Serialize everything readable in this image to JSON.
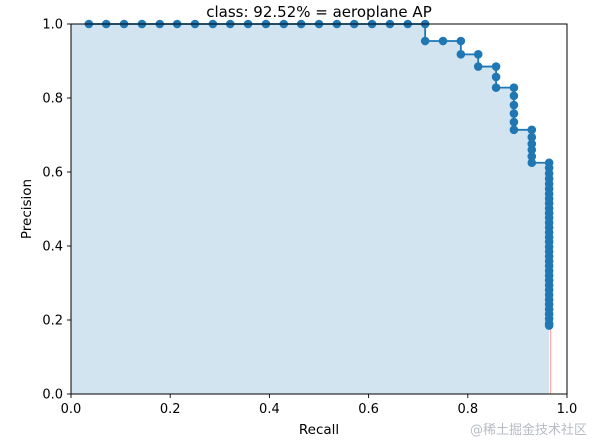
{
  "chart_data": {
    "type": "line",
    "title": "class: 92.52% = aeroplane AP",
    "xlabel": "Recall",
    "ylabel": "Precision",
    "xlim": [
      0.0,
      1.0
    ],
    "ylim": [
      0.0,
      1.0
    ],
    "xticks": [
      "0.0",
      "0.2",
      "0.4",
      "0.6",
      "0.8",
      "1.0"
    ],
    "yticks": [
      "0.0",
      "0.2",
      "0.4",
      "0.6",
      "0.8",
      "1.0"
    ],
    "grid": false,
    "legend": "none",
    "colors": {
      "line": "#1f77b4",
      "fill": "#1f77b4",
      "fill_alpha": 0.2,
      "edge": "#ff9a9a"
    },
    "series": [
      {
        "points": [
          [
            0.036,
            1.0
          ],
          [
            0.071,
            1.0
          ],
          [
            0.107,
            1.0
          ],
          [
            0.143,
            1.0
          ],
          [
            0.179,
            1.0
          ],
          [
            0.214,
            1.0
          ],
          [
            0.25,
            1.0
          ],
          [
            0.286,
            1.0
          ],
          [
            0.321,
            1.0
          ],
          [
            0.357,
            1.0
          ],
          [
            0.393,
            1.0
          ],
          [
            0.429,
            1.0
          ],
          [
            0.464,
            1.0
          ],
          [
            0.5,
            1.0
          ],
          [
            0.536,
            1.0
          ],
          [
            0.571,
            1.0
          ],
          [
            0.607,
            1.0
          ],
          [
            0.643,
            1.0
          ],
          [
            0.679,
            1.0
          ],
          [
            0.714,
            1.0
          ],
          [
            0.714,
            0.954
          ],
          [
            0.75,
            0.954
          ],
          [
            0.786,
            0.954
          ],
          [
            0.786,
            0.918
          ],
          [
            0.821,
            0.918
          ],
          [
            0.821,
            0.885
          ],
          [
            0.857,
            0.885
          ],
          [
            0.857,
            0.857
          ],
          [
            0.857,
            0.828
          ],
          [
            0.893,
            0.828
          ],
          [
            0.893,
            0.806
          ],
          [
            0.893,
            0.781
          ],
          [
            0.893,
            0.758
          ],
          [
            0.893,
            0.735
          ],
          [
            0.893,
            0.714
          ],
          [
            0.929,
            0.714
          ],
          [
            0.929,
            0.694
          ],
          [
            0.929,
            0.676
          ],
          [
            0.929,
            0.66
          ],
          [
            0.929,
            0.642
          ],
          [
            0.929,
            0.625
          ],
          [
            0.964,
            0.625
          ],
          [
            0.964,
            0.611
          ],
          [
            0.964,
            0.596
          ],
          [
            0.964,
            0.582
          ],
          [
            0.964,
            0.568
          ],
          [
            0.964,
            0.555
          ],
          [
            0.964,
            0.541
          ],
          [
            0.964,
            0.528
          ],
          [
            0.964,
            0.515
          ],
          [
            0.964,
            0.502
          ],
          [
            0.964,
            0.489
          ],
          [
            0.964,
            0.476
          ],
          [
            0.964,
            0.463
          ],
          [
            0.964,
            0.45
          ],
          [
            0.964,
            0.437
          ],
          [
            0.964,
            0.424
          ],
          [
            0.964,
            0.411
          ],
          [
            0.964,
            0.398
          ],
          [
            0.964,
            0.385
          ],
          [
            0.964,
            0.372
          ],
          [
            0.964,
            0.359
          ],
          [
            0.964,
            0.346
          ],
          [
            0.964,
            0.333
          ],
          [
            0.964,
            0.32
          ],
          [
            0.964,
            0.307
          ],
          [
            0.964,
            0.294
          ],
          [
            0.964,
            0.281
          ],
          [
            0.964,
            0.268
          ],
          [
            0.964,
            0.255
          ],
          [
            0.964,
            0.242
          ],
          [
            0.964,
            0.229
          ],
          [
            0.964,
            0.216
          ],
          [
            0.964,
            0.203
          ],
          [
            0.964,
            0.19
          ],
          [
            0.964,
            0.185
          ]
        ]
      }
    ]
  },
  "watermark": "@稀土掘金技术社区"
}
